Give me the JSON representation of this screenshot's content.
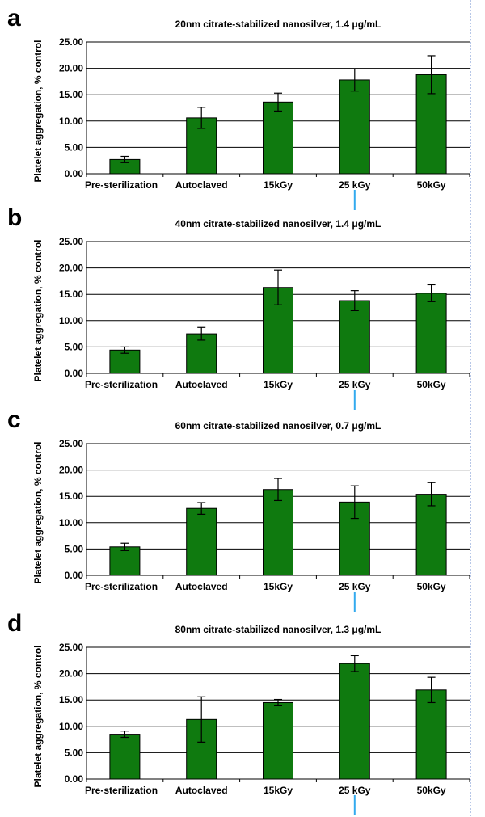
{
  "colors": {
    "bar": "#0f7a0f",
    "marker": "#33aaee",
    "divider": "#6f8fcf"
  },
  "chart_data": [
    {
      "type": "bar",
      "panel": "a",
      "title_prefix": "20nm citrate-stabilized nanosilver, 1.4 ",
      "title_unit": "μg/mL",
      "ylabel": "Platelet aggregation, % control",
      "categories": [
        "Pre-sterilization",
        "Autoclaved",
        "15kGy",
        "25 kGy",
        "50kGy"
      ],
      "values": [
        2.7,
        10.6,
        13.6,
        17.8,
        18.8
      ],
      "errors": [
        0.6,
        2.0,
        1.7,
        2.1,
        3.6
      ],
      "ylim": [
        0,
        25
      ],
      "yticks": [
        "0.00",
        "5.00",
        "10.00",
        "15.00",
        "20.00",
        "25.00"
      ],
      "grid": true
    },
    {
      "type": "bar",
      "panel": "b",
      "title_prefix": "40nm citrate-stabilized nanosilver, 1.4 ",
      "title_unit": "μg/mL",
      "ylabel": "Platelet aggregation, % control",
      "categories": [
        "Pre-sterilization",
        "Autoclaved",
        "15kGy",
        "25 kGy",
        "50kGy"
      ],
      "values": [
        4.4,
        7.5,
        16.3,
        13.8,
        15.2
      ],
      "errors": [
        0.6,
        1.2,
        3.3,
        1.9,
        1.6
      ],
      "ylim": [
        0,
        25
      ],
      "yticks": [
        "0.00",
        "5.00",
        "10.00",
        "15.00",
        "20.00",
        "25.00"
      ],
      "grid": true
    },
    {
      "type": "bar",
      "panel": "c",
      "title_prefix": "60nm citrate-stabilized nanosilver, 0.7 ",
      "title_unit": "μg/mL",
      "ylabel": "Platelet aggregation, % control",
      "categories": [
        "Pre-sterilization",
        "Autoclaved",
        "15kGy",
        "25 kGy",
        "50kGy"
      ],
      "values": [
        5.4,
        12.7,
        16.3,
        13.9,
        15.4
      ],
      "errors": [
        0.7,
        1.1,
        2.1,
        3.1,
        2.2
      ],
      "ylim": [
        0,
        25
      ],
      "yticks": [
        "0.00",
        "5.00",
        "10.00",
        "15.00",
        "20.00",
        "25.00"
      ],
      "grid": true
    },
    {
      "type": "bar",
      "panel": "d",
      "title_prefix": "80nm citrate-stabilized nanosilver, 1.3 ",
      "title_unit": "μg/mL",
      "ylabel": "Platelet aggregation, % control",
      "categories": [
        "Pre-sterilization",
        "Autoclaved",
        "15kGy",
        "25 kGy",
        "50kGy"
      ],
      "values": [
        8.5,
        11.3,
        14.5,
        21.9,
        16.9
      ],
      "errors": [
        0.6,
        4.3,
        0.6,
        1.5,
        2.4
      ],
      "ylim": [
        0,
        25
      ],
      "yticks": [
        "0.00",
        "5.00",
        "10.00",
        "15.00",
        "20.00",
        "25.00"
      ],
      "grid": true
    }
  ]
}
